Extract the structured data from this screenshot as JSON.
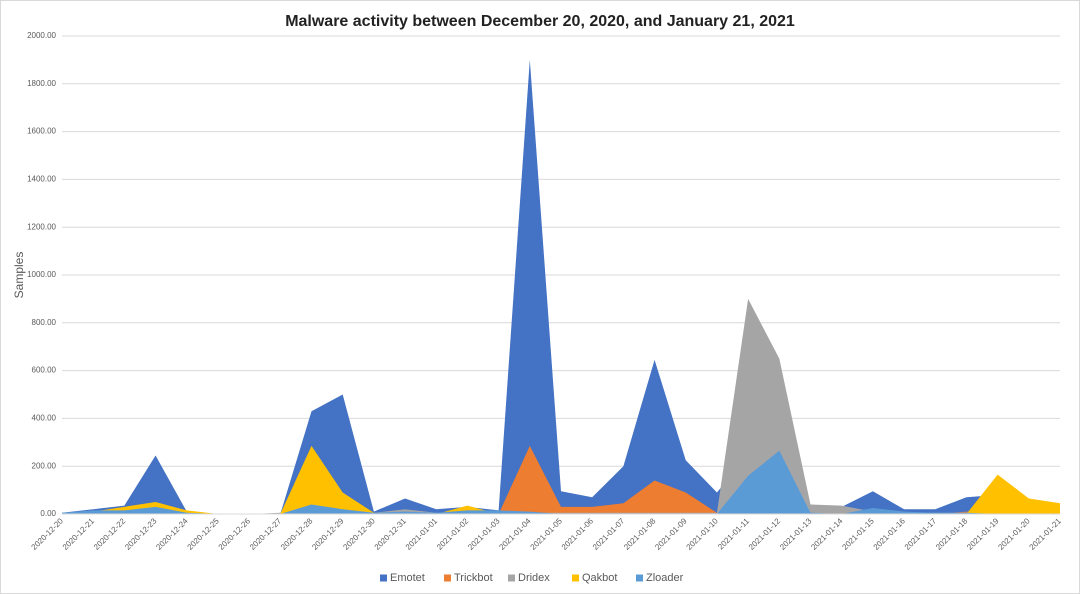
{
  "chart_data": {
    "type": "area",
    "title": "Malware activity between December 20, 2020, and January 21, 2021",
    "y_label": "Samples",
    "categories": [
      "2020-12-20",
      "2020-12-21",
      "2020-12-22",
      "2020-12-23",
      "2020-12-24",
      "2020-12-25",
      "2020-12-26",
      "2020-12-27",
      "2020-12-28",
      "2020-12-29",
      "2020-12-30",
      "2020-12-31",
      "2021-01-01",
      "2021-01-02",
      "2021-01-03",
      "2021-01-04",
      "2021-01-05",
      "2021-01-06",
      "2021-01-07",
      "2021-01-08",
      "2021-01-09",
      "2021-01-10",
      "2021-01-11",
      "2021-01-12",
      "2021-01-13",
      "2021-01-14",
      "2021-01-15",
      "2021-01-16",
      "2021-01-17",
      "2021-01-18",
      "2021-01-19",
      "2021-01-20",
      "2021-01-21"
    ],
    "series": [
      {
        "name": "Emotet",
        "color": "#4472c4",
        "values": [
          5,
          20,
          35,
          245,
          10,
          0,
          0,
          0,
          430,
          500,
          10,
          65,
          20,
          30,
          15,
          1900,
          95,
          70,
          200,
          645,
          225,
          90,
          250,
          30,
          30,
          30,
          95,
          20,
          20,
          70,
          80,
          60,
          40
        ]
      },
      {
        "name": "Trickbot",
        "color": "#ed7d31",
        "values": [
          0,
          0,
          0,
          0,
          0,
          0,
          0,
          0,
          0,
          0,
          0,
          0,
          0,
          0,
          0,
          285,
          30,
          30,
          45,
          140,
          90,
          5,
          0,
          0,
          0,
          0,
          0,
          0,
          0,
          10,
          0,
          0,
          0
        ]
      },
      {
        "name": "Dridex",
        "color": "#a5a5a5",
        "values": [
          5,
          5,
          5,
          5,
          5,
          0,
          0,
          5,
          5,
          5,
          5,
          20,
          5,
          5,
          5,
          5,
          5,
          5,
          5,
          5,
          5,
          5,
          900,
          650,
          40,
          35,
          10,
          5,
          5,
          5,
          5,
          5,
          5
        ]
      },
      {
        "name": "Qakbot",
        "color": "#ffc000",
        "values": [
          0,
          10,
          30,
          50,
          15,
          0,
          0,
          0,
          285,
          90,
          5,
          0,
          0,
          35,
          0,
          0,
          0,
          0,
          0,
          0,
          0,
          0,
          0,
          0,
          0,
          0,
          0,
          0,
          0,
          0,
          165,
          65,
          45
        ]
      },
      {
        "name": "Zloader",
        "color": "#5b9bd5",
        "values": [
          5,
          15,
          15,
          30,
          5,
          0,
          0,
          0,
          40,
          20,
          5,
          10,
          5,
          15,
          15,
          10,
          0,
          0,
          0,
          0,
          0,
          0,
          160,
          265,
          5,
          0,
          25,
          10,
          5,
          5,
          0,
          0,
          0
        ]
      }
    ],
    "ylim": [
      0,
      2000
    ],
    "yticks": [
      {
        "value": 0,
        "label": "0.00"
      },
      {
        "value": 200,
        "label": "200.00"
      },
      {
        "value": 400,
        "label": "400.00"
      },
      {
        "value": 600,
        "label": "600.00"
      },
      {
        "value": 800,
        "label": "800.00"
      },
      {
        "value": 1000,
        "label": "1000.00"
      },
      {
        "value": 1200,
        "label": "1200.00"
      },
      {
        "value": 1400,
        "label": "1400.00"
      },
      {
        "value": 1600,
        "label": "1600.00"
      },
      {
        "value": 1800,
        "label": "1800.00"
      },
      {
        "value": 2000,
        "label": "2000.00"
      }
    ],
    "grid": true
  }
}
